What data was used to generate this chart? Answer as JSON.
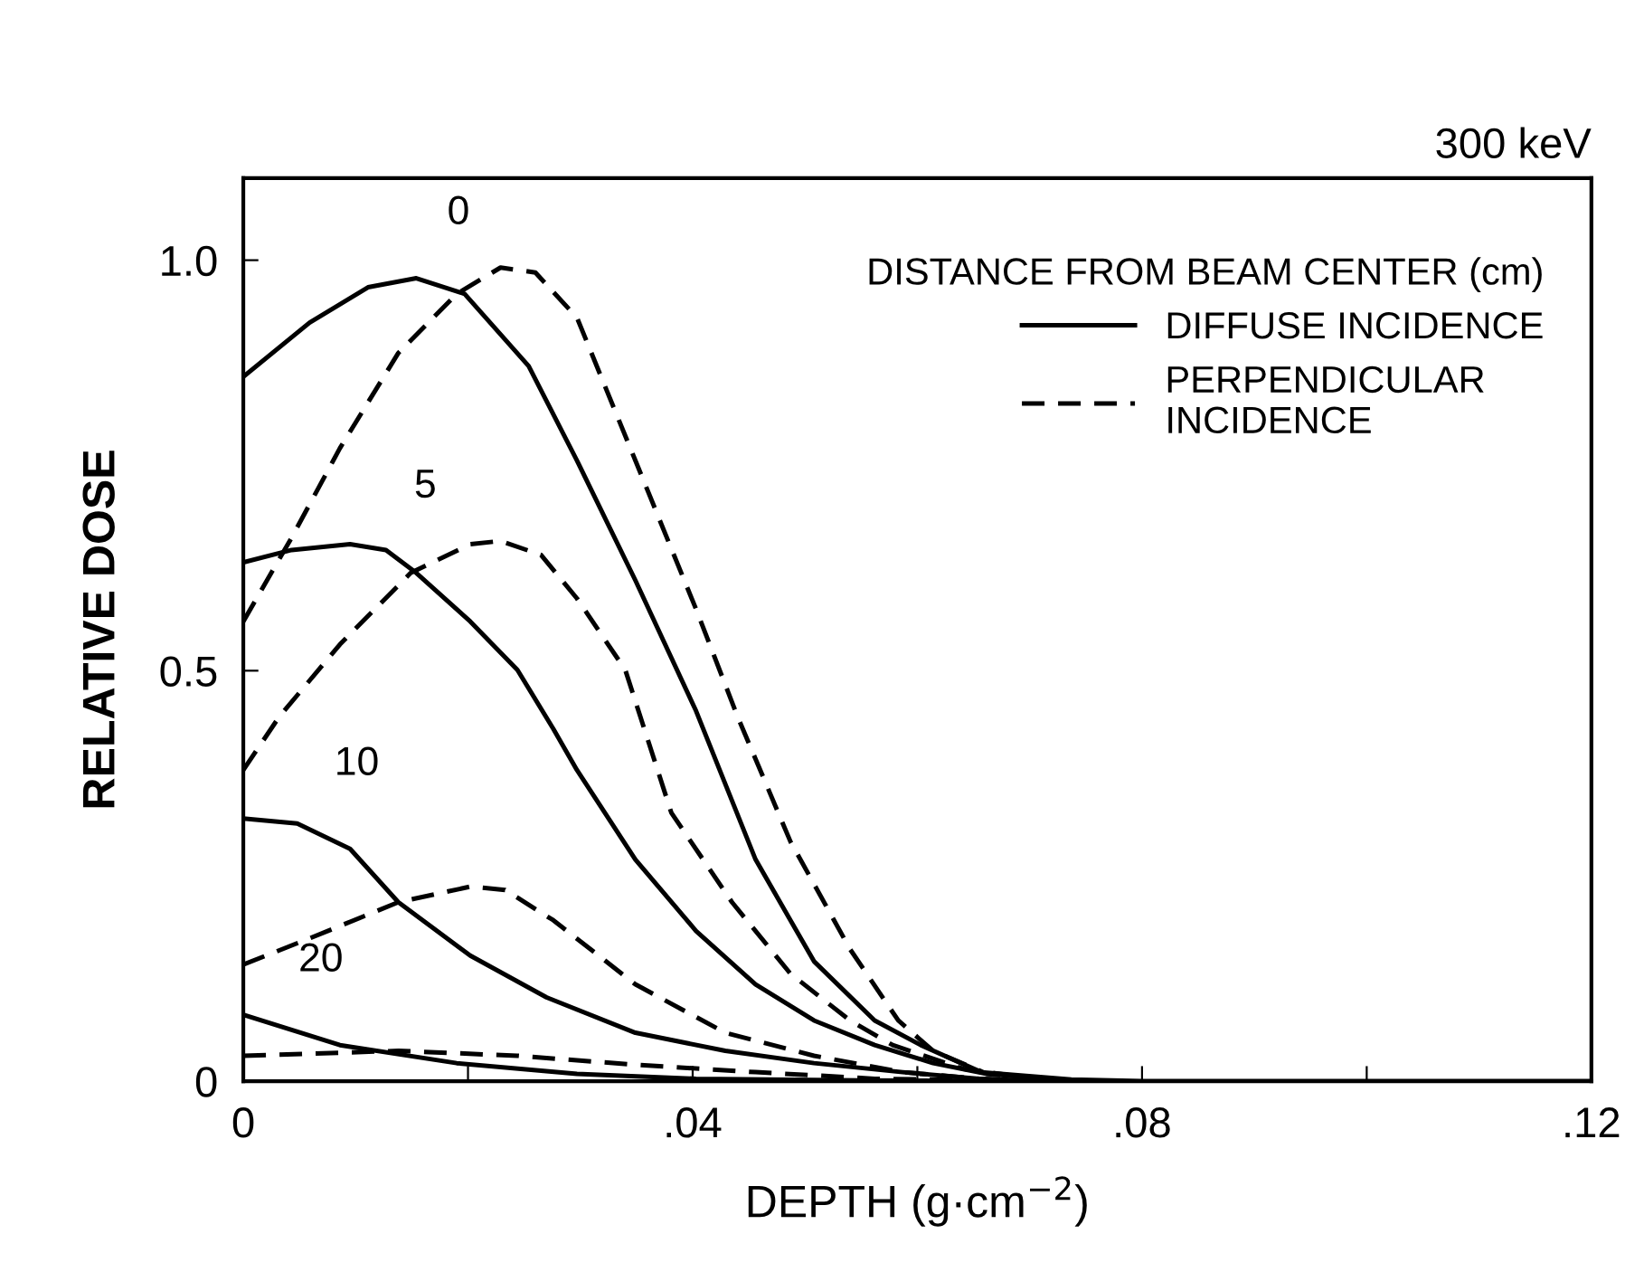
{
  "chart_data": {
    "type": "line",
    "title": "300 keV",
    "xlabel": "DEPTH (g·cm$^{−2}$)",
    "ylabel": "RELATIVE DOSE",
    "legend_title": "DISTANCE FROM BEAM CENTER (cm)",
    "legend": "top right",
    "grid": false,
    "marker": "none",
    "xlim": [
      0,
      0.12
    ],
    "ylim": [
      0,
      1.1
    ],
    "xticks": [
      {
        "value": 0,
        "label": "0"
      },
      {
        "value": 0.02,
        "label": null
      },
      {
        "value": 0.04,
        "label": ".04"
      },
      {
        "value": 0.06,
        "label": null
      },
      {
        "value": 0.08,
        "label": ".08"
      },
      {
        "value": 0.1,
        "label": null
      },
      {
        "value": 0.12,
        "label": ".12"
      }
    ],
    "yticks": [
      {
        "value": 0,
        "label": "0"
      },
      {
        "value": 0.5,
        "label": "0.5"
      },
      {
        "value": 1.0,
        "label": "1.0"
      }
    ],
    "annotations": [
      "0",
      "5",
      "10",
      "20"
    ],
    "series": [
      {
        "name": "DIFFUSE INCIDENCE",
        "color": "#000000",
        "line_style": "solid",
        "x": [
          0,
          0.0059,
          0.0111,
          0.0154,
          0.0197,
          0.0254,
          0.0297,
          0.0349,
          0.0403,
          0.0456,
          0.0508,
          0.0562,
          0.0603,
          0.0657,
          0.0737,
          0.08,
          0.12
        ],
        "values": [
          0.858,
          0.924,
          0.967,
          0.978,
          0.959,
          0.871,
          0.756,
          0.61,
          0.451,
          0.27,
          0.146,
          0.074,
          0.044,
          0.011,
          0.002,
          0,
          0
        ]
      },
      {
        "name": "PERPENDICULAR\nINCIDENCE",
        "color": "#000000",
        "line_style": "dashed",
        "x": [
          0,
          0.0043,
          0.0086,
          0.0138,
          0.019,
          0.0229,
          0.026,
          0.0297,
          0.0349,
          0.0403,
          0.044,
          0.0487,
          0.054,
          0.0583,
          0.0614,
          0.0662,
          0.074
        ],
        "values": [
          0.56,
          0.662,
          0.771,
          0.887,
          0.959,
          0.991,
          0.985,
          0.93,
          0.756,
          0.575,
          0.444,
          0.292,
          0.161,
          0.074,
          0.037,
          0.009,
          0
        ]
      },
      {
        "color": "#000000",
        "line_style": "solid",
        "x": [
          0,
          0.0043,
          0.0095,
          0.0127,
          0.0154,
          0.0202,
          0.0244,
          0.0276,
          0.0297,
          0.0349,
          0.0403,
          0.0456,
          0.0508,
          0.0562,
          0.0614,
          0.0662,
          0.074
        ],
        "values": [
          0.632,
          0.647,
          0.654,
          0.647,
          0.619,
          0.56,
          0.501,
          0.429,
          0.379,
          0.27,
          0.183,
          0.118,
          0.074,
          0.044,
          0.022,
          0.009,
          0
        ]
      },
      {
        "color": "#000000",
        "line_style": "dashed",
        "x": [
          0,
          0.0032,
          0.0086,
          0.0149,
          0.0202,
          0.0229,
          0.0265,
          0.0297,
          0.034,
          0.0381,
          0.0435,
          0.0487,
          0.054,
          0.0578,
          0.0641,
          0.072
        ],
        "values": [
          0.379,
          0.444,
          0.532,
          0.619,
          0.654,
          0.658,
          0.641,
          0.588,
          0.501,
          0.327,
          0.218,
          0.131,
          0.074,
          0.044,
          0.015,
          0
        ]
      },
      {
        "color": "#000000",
        "line_style": "solid",
        "x": [
          0,
          0.0048,
          0.0095,
          0.0138,
          0.0202,
          0.027,
          0.0349,
          0.0429,
          0.0508,
          0.0587,
          0.0655,
          0.072
        ],
        "values": [
          0.32,
          0.314,
          0.283,
          0.218,
          0.153,
          0.102,
          0.059,
          0.037,
          0.022,
          0.011,
          0.003,
          0
        ]
      },
      {
        "color": "#000000",
        "line_style": "dashed",
        "x": [
          0,
          0.0059,
          0.0138,
          0.0202,
          0.0233,
          0.0276,
          0.0349,
          0.0429,
          0.0508,
          0.0587,
          0.0655,
          0.072
        ],
        "values": [
          0.142,
          0.174,
          0.218,
          0.237,
          0.233,
          0.196,
          0.118,
          0.059,
          0.031,
          0.011,
          0.003,
          0
        ]
      },
      {
        "color": "#000000",
        "line_style": "solid",
        "x": [
          0,
          0.0086,
          0.019,
          0.0297,
          0.0403,
          0.055,
          0.07
        ],
        "values": [
          0.081,
          0.044,
          0.022,
          0.009,
          0.003,
          0.001,
          0
        ]
      },
      {
        "color": "#000000",
        "line_style": "dashed",
        "x": [
          0,
          0.0138,
          0.0244,
          0.0349,
          0.0456,
          0.0562,
          0.07
        ],
        "values": [
          0.031,
          0.037,
          0.031,
          0.02,
          0.011,
          0.003,
          0
        ]
      }
    ]
  }
}
